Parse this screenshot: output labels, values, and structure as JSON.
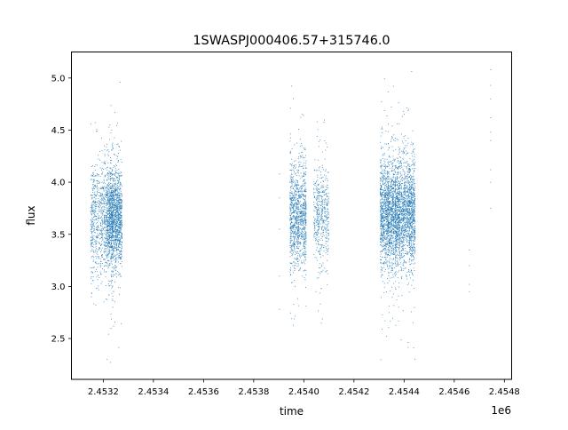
{
  "chart_data": {
    "type": "scatter",
    "title": "1SWASPJ000406.57+315746.0",
    "xlabel": "time",
    "ylabel": "flux",
    "x_offset_label": "1e6",
    "xlim": [
      2453073,
      2454829
    ],
    "ylim": [
      2.108,
      5.25
    ],
    "x_ticks": [
      2453200,
      2453400,
      2453600,
      2453800,
      2454000,
      2454200,
      2454400,
      2454600,
      2454800
    ],
    "x_tick_labels": [
      "2.4532",
      "2.4534",
      "2.4536",
      "2.4538",
      "2.4540",
      "2.4542",
      "2.4544",
      "2.4546",
      "2.4548"
    ],
    "y_ticks": [
      2.5,
      3.0,
      3.5,
      4.0,
      4.5,
      5.0
    ],
    "y_tick_labels": [
      "2.5",
      "3.0",
      "3.5",
      "4.0",
      "4.5",
      "5.0"
    ],
    "grid": false,
    "marker_color": "#1f77b4",
    "seasons": [
      {
        "x_range": [
          2453150,
          2453215
        ],
        "flux_center": 3.65,
        "flux_spread": 0.28,
        "count": 700,
        "flux_min": 2.8,
        "flux_max": 4.6
      },
      {
        "x_range": [
          2453215,
          2453275
        ],
        "flux_center": 3.65,
        "flux_spread": 0.25,
        "count": 1600,
        "flux_min": 2.25,
        "flux_max": 5.02
      },
      {
        "x_range": [
          2453945,
          2454010
        ],
        "flux_center": 3.68,
        "flux_spread": 0.25,
        "count": 1100,
        "flux_min": 2.6,
        "flux_max": 5.02
      },
      {
        "x_range": [
          2454040,
          2454100
        ],
        "flux_center": 3.68,
        "flux_spread": 0.25,
        "count": 500,
        "flux_min": 2.6,
        "flux_max": 4.6
      },
      {
        "x_range": [
          2454305,
          2454445
        ],
        "flux_center": 3.7,
        "flux_spread": 0.26,
        "count": 3200,
        "flux_min": 2.28,
        "flux_max": 5.1
      }
    ],
    "isolated_points": [
      {
        "x": 2453903,
        "y": 4.08
      },
      {
        "x": 2453903,
        "y": 3.85
      },
      {
        "x": 2453903,
        "y": 3.55
      },
      {
        "x": 2453903,
        "y": 3.1
      },
      {
        "x": 2453903,
        "y": 2.78
      },
      {
        "x": 2454660,
        "y": 3.35
      },
      {
        "x": 2454660,
        "y": 3.2
      },
      {
        "x": 2454660,
        "y": 3.02
      },
      {
        "x": 2454660,
        "y": 2.95
      },
      {
        "x": 2454745,
        "y": 5.08
      },
      {
        "x": 2454745,
        "y": 4.93
      },
      {
        "x": 2454745,
        "y": 4.8
      },
      {
        "x": 2454745,
        "y": 4.62
      },
      {
        "x": 2454745,
        "y": 4.48
      },
      {
        "x": 2454745,
        "y": 4.4
      },
      {
        "x": 2454745,
        "y": 4.12
      },
      {
        "x": 2454745,
        "y": 4.0
      },
      {
        "x": 2454745,
        "y": 3.75
      }
    ]
  }
}
